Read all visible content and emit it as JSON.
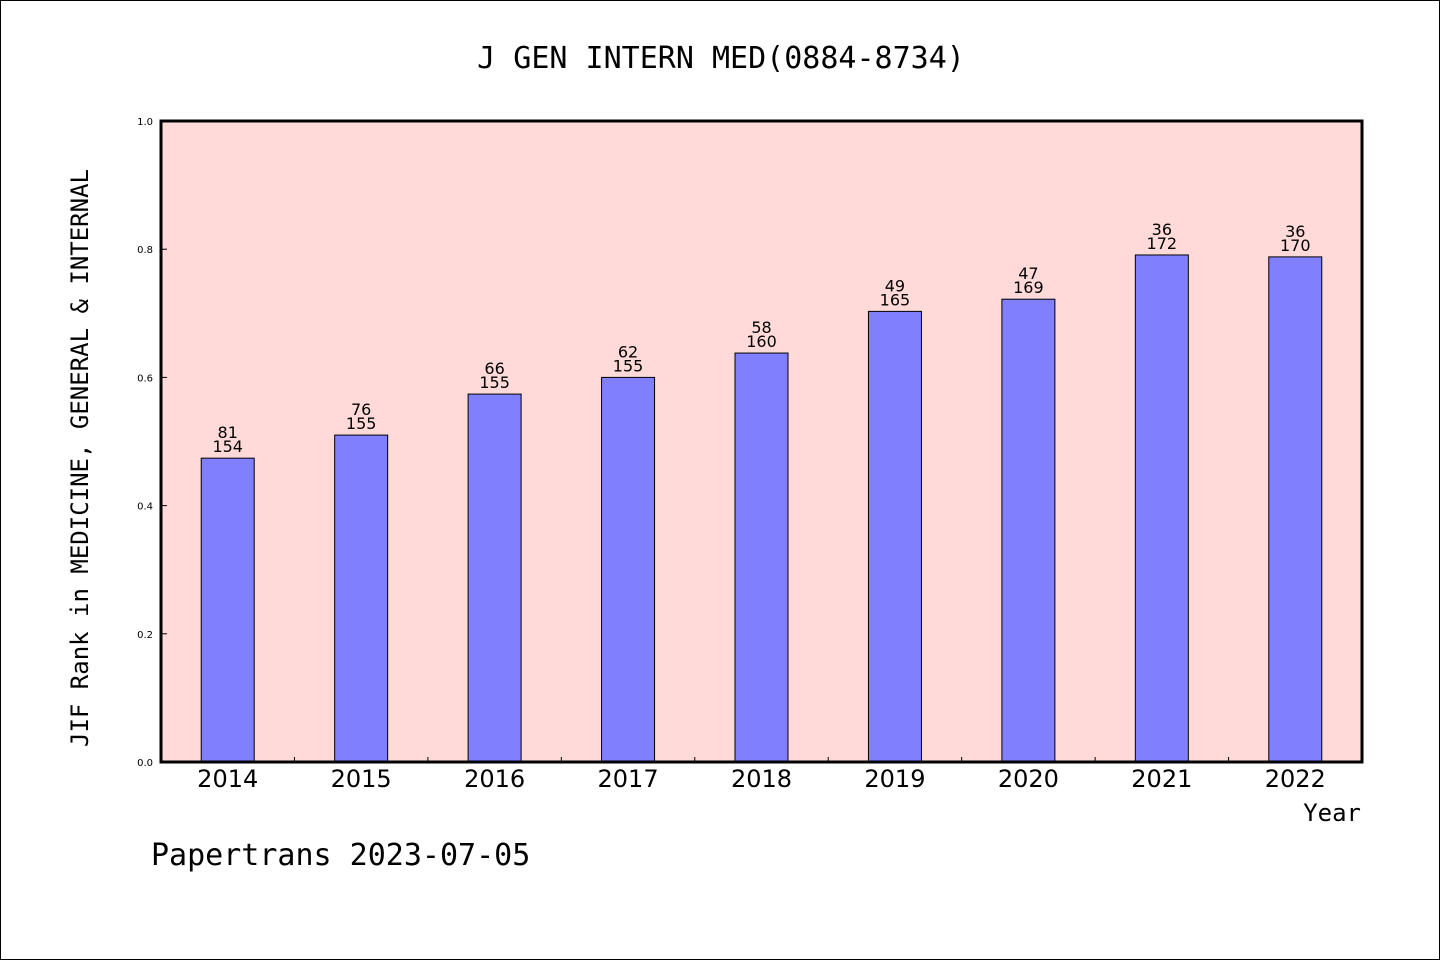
{
  "chart_data": {
    "type": "bar",
    "title": "J GEN INTERN MED(0884-8734)",
    "xlabel": "Year",
    "ylabel": "JIF Rank in MEDICINE, GENERAL & INTERNAL",
    "categories": [
      "2014",
      "2015",
      "2016",
      "2017",
      "2018",
      "2019",
      "2020",
      "2021",
      "2022"
    ],
    "values": [
      0.474,
      0.51,
      0.574,
      0.6,
      0.638,
      0.703,
      0.722,
      0.791,
      0.788
    ],
    "rank": [
      "81",
      "76",
      "66",
      "62",
      "58",
      "49",
      "47",
      "36",
      "36"
    ],
    "total": [
      "154",
      "155",
      "155",
      "155",
      "160",
      "165",
      "169",
      "172",
      "170"
    ],
    "ylim": [
      0,
      1.0
    ],
    "yticks": [
      "0.0",
      "0.2",
      "0.4",
      "0.6",
      "0.8",
      "1.0"
    ],
    "grid": false,
    "colors": {
      "plot_background": "#FFDAD8",
      "bar_fill": "#8080FF",
      "bar_stroke": "#000000"
    }
  },
  "footer": "Papertrans 2023-07-05"
}
